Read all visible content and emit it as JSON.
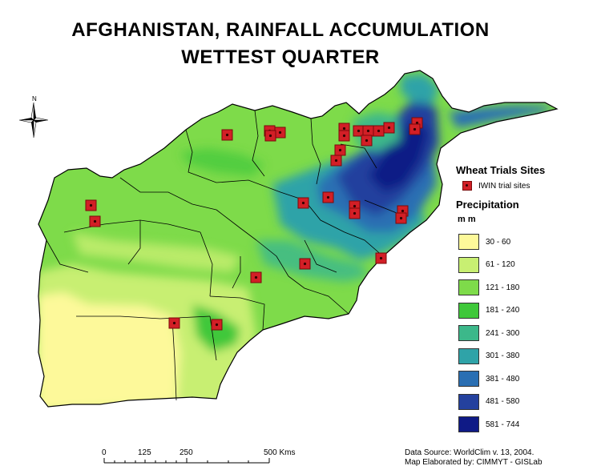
{
  "title_line1": "AFGHANISTAN, RAINFALL  ACCUMULATION",
  "title_line2": "WETTEST  QUARTER",
  "north_label": "N",
  "sites_legend": {
    "heading": "Wheat Trials Sites",
    "item_label": "IWIN trial sites",
    "symbol_color": "#d21f26"
  },
  "precip_legend": {
    "heading": "Precipitation",
    "unit": "m m",
    "classes": [
      {
        "label": "30 - 60",
        "color": "#fdf99a"
      },
      {
        "label": "61 - 120",
        "color": "#c8ef72"
      },
      {
        "label": "121 - 180",
        "color": "#7edb4a"
      },
      {
        "label": "181 - 240",
        "color": "#3fc83a"
      },
      {
        "label": "241 - 300",
        "color": "#3cb88a"
      },
      {
        "label": "301 - 380",
        "color": "#2fa3a8"
      },
      {
        "label": "381 - 480",
        "color": "#2a6fb3"
      },
      {
        "label": "481 - 580",
        "color": "#24419e"
      },
      {
        "label": "581 - 744",
        "color": "#0f1a86"
      }
    ]
  },
  "scale_bar": {
    "ticks": [
      "0",
      "125",
      "250",
      "500 Kms"
    ]
  },
  "credits": {
    "line1": "Data Source: WorldClim v. 13,  2004.",
    "line2": "Map Elaborated by: CIMMYT - GISLab"
  }
}
